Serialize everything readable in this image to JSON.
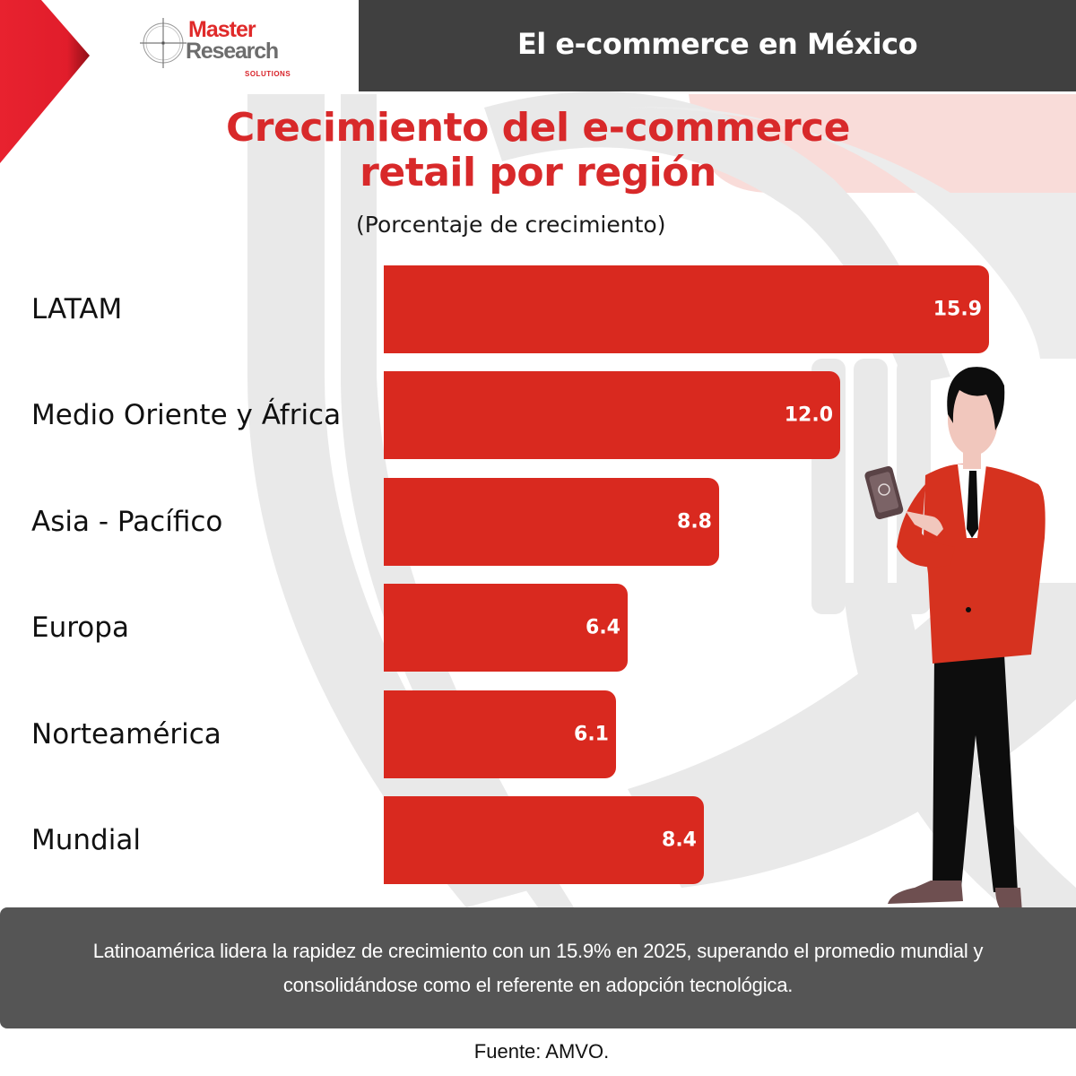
{
  "brand": {
    "logo_line1": "Master",
    "logo_line2": "Research",
    "logo_line3": "SOLUTIONS",
    "colors": {
      "brand_red": "#d9291f",
      "header_bg": "#404040",
      "note_bg": "#555555",
      "background_pattern": "#e9e9e9",
      "accent_pink": "#f9dcd9"
    }
  },
  "header": {
    "title": "El e-commerce en México"
  },
  "chart_title": {
    "line1": "Crecimiento del e-commerce",
    "line2": "retail por región",
    "subtitle": "(Porcentaje de crecimiento)"
  },
  "chart_data": {
    "type": "bar",
    "orientation": "horizontal",
    "title": "Crecimiento del e-commerce retail por región",
    "subtitle": "(Porcentaje de crecimiento)",
    "xlabel": "",
    "ylabel": "",
    "categories": [
      "LATAM",
      "Medio Oriente y África",
      "Asia - Pacífico",
      "Europa",
      "Norteamérica",
      "Mundial"
    ],
    "values": [
      15.9,
      12.0,
      8.8,
      6.4,
      6.1,
      8.4
    ],
    "value_labels": [
      "15.9",
      "12.0",
      "8.8",
      "6.4",
      "6.1",
      "8.4"
    ],
    "unit": "%",
    "grid": false,
    "legend": null,
    "xlim": [
      0,
      16
    ],
    "bar_color": "#d9291f"
  },
  "note": {
    "text": "Latinoamérica lidera la rapidez de crecimiento con un 15.9% en 2025, superando el promedio mundial y consolidándose como el referente en adopción tecnológica."
  },
  "source": {
    "text": "Fuente: AMVO."
  },
  "icons": {
    "logo_mark": "crosshair-icon",
    "illustration": "businessman-with-phone-illustration"
  }
}
